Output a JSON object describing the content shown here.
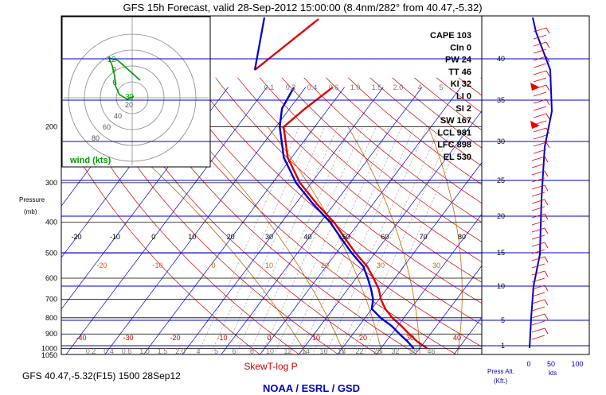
{
  "title": "GFS 15h Forecast, valid 28-Sep-2012 15:00:00 (8.4nm/282° from 40.47,-5.32)",
  "footer_left": "GFS 40.47,-5.32(F15) 1500 28Sep12",
  "footer_center": "SkewT-log P",
  "footer_brand": "NOAA / ESRL / GSD",
  "colors": {
    "isobar": "#000000",
    "isotherm": "#0000cc",
    "dry_adiabat": "#cc0000",
    "moist_adiabat": "#cc6600",
    "mixing_ratio": "#888888",
    "temperature": "#dd0000",
    "dewpoint": "#0000cc",
    "hodograph": "#009900",
    "title": "#000000",
    "brand": "#0000cc",
    "skewt_label": "#cc0000"
  },
  "indices": [
    {
      "label": "CAPE",
      "value": "103"
    },
    {
      "label": "CIn",
      "value": "0"
    },
    {
      "label": "PW",
      "value": "24"
    },
    {
      "label": "TT",
      "value": "46"
    },
    {
      "label": "KI",
      "value": "32"
    },
    {
      "label": "LI",
      "value": "0"
    },
    {
      "label": "SI",
      "value": "2"
    },
    {
      "label": "SW",
      "value": "167"
    },
    {
      "label": "LCL",
      "value": "981"
    },
    {
      "label": "LFC",
      "value": "898"
    },
    {
      "label": "EL",
      "value": "530"
    }
  ],
  "hodograph": {
    "label": "wind (kts)",
    "ring_labels": [
      "20",
      "40",
      "60",
      "80"
    ],
    "point_labels": [
      "12",
      "9",
      "6",
      "3",
      "0"
    ]
  },
  "side_panel": {
    "label_alt": "Press Alt.",
    "label_kft": "(Kft.)",
    "label_kts": "kts"
  },
  "chart_data": {
    "type": "line",
    "xlabel": "",
    "ylabel": "Pressure (mb)",
    "pressure_ticks": [
      1050,
      1000,
      900,
      800,
      700,
      600,
      500,
      400,
      300,
      200
    ],
    "pressure_labels": [
      "1050",
      "1000",
      "900",
      "800",
      "700",
      "600",
      "500",
      "400",
      "300",
      "200"
    ],
    "isotherm_labels_upper": [
      "-20",
      "-10",
      "0",
      "10",
      "20",
      "30",
      "40",
      "50",
      "60",
      "70",
      "80"
    ],
    "isotherm_labels_lower": [
      "-40",
      "-30",
      "-20",
      "-10",
      "0",
      "10",
      "20",
      "30",
      "40"
    ],
    "dry_adiabat_labels": [
      "-20",
      "-10",
      "0",
      "10",
      "20",
      "30",
      "30"
    ],
    "mixing_ratio_labels_top": [
      "0.1",
      "0.2",
      "0.4",
      "0.6",
      "1.0",
      "1.5",
      "2.0",
      "4",
      "5"
    ],
    "mixing_ratio_labels_bottom": [
      "0.2",
      "0.4",
      "0.6",
      "1.0",
      "1.5",
      "2.0",
      "4",
      "5",
      "6",
      "8",
      "10",
      "12",
      "14",
      "16",
      "18",
      "22",
      "26",
      "32",
      "38",
      "46"
    ],
    "series": [
      {
        "name": "Temperature",
        "pressure": [
          1000,
          950,
          900,
          850,
          800,
          750,
          700,
          650,
          600,
          550,
          500,
          450,
          400,
          350,
          300,
          250,
          200,
          175,
          150
        ],
        "temp_c": [
          22,
          18,
          14.5,
          11,
          7,
          3.5,
          0.5,
          -2,
          -5.5,
          -9.5,
          -15,
          -20.5,
          -26.5,
          -34.5,
          -43,
          -51,
          -58,
          -56,
          -53
        ]
      },
      {
        "name": "Dewpoint",
        "pressure": [
          1000,
          950,
          900,
          850,
          800,
          750,
          700,
          650,
          600,
          550,
          500,
          450,
          400,
          350,
          300,
          250,
          200,
          175,
          150
        ],
        "temp_c": [
          18.5,
          15.5,
          12,
          8.5,
          4,
          0,
          -1.5,
          -4,
          -7,
          -10.5,
          -16,
          -21.5,
          -27.5,
          -35.5,
          -44,
          -52,
          -59,
          -62,
          -63
        ]
      }
    ],
    "altitude_labels_kft": [
      "1",
      "5",
      "10",
      "15",
      "20",
      "25",
      "30",
      "35",
      "40"
    ],
    "wind_speed_ticks": [
      "0",
      "50",
      "100"
    ]
  }
}
